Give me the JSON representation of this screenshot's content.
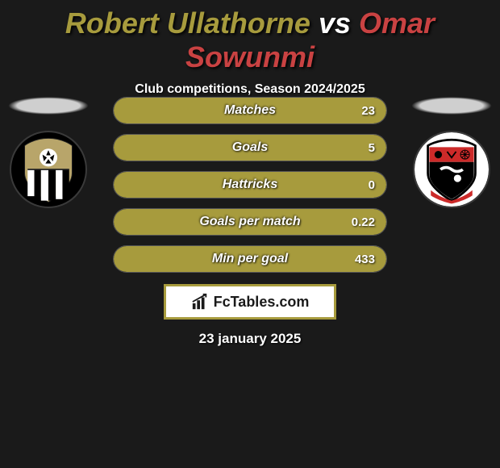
{
  "header": {
    "player1": "Robert Ullathorne",
    "vs": "vs",
    "player2": "Omar Sowunmi",
    "player1_color": "#a79b3d",
    "vs_color": "#ffffff",
    "player2_color": "#c94242",
    "subtitle": "Club competitions, Season 2024/2025"
  },
  "colors": {
    "fill_olive": "#a79b3d",
    "bar_bg": "#1f1f1f",
    "bar_border": "#555555",
    "page_bg": "#1a1a1a"
  },
  "bars": [
    {
      "label": "Matches",
      "left": "",
      "right": "23",
      "fill_pct": 100
    },
    {
      "label": "Goals",
      "left": "",
      "right": "5",
      "fill_pct": 100
    },
    {
      "label": "Hattricks",
      "left": "",
      "right": "0",
      "fill_pct": 100
    },
    {
      "label": "Goals per match",
      "left": "",
      "right": "0.22",
      "fill_pct": 100
    },
    {
      "label": "Min per goal",
      "left": "",
      "right": "433",
      "fill_pct": 100
    }
  ],
  "clubs": {
    "left": {
      "name": "notts-county",
      "crest_bg": "#000000",
      "stripe1": "#ffffff",
      "stripe2": "#000000",
      "top_color": "#b8a56a",
      "ball_color": "#ffffff"
    },
    "right": {
      "name": "bromley",
      "crest_bg": "#ffffff",
      "shield_border": "#000000",
      "top_color": "#cc2a29",
      "bottom_color": "#000000",
      "banner_color": "#cc2a29"
    }
  },
  "branding": {
    "text": "FcTables.com",
    "icon": "bar-chart-icon"
  },
  "date": "23 january 2025"
}
